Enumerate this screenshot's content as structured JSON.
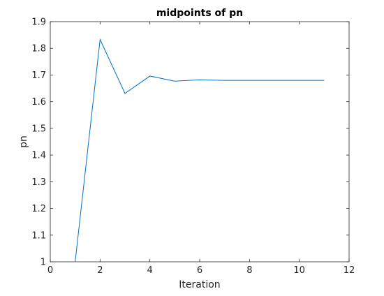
{
  "colors": {
    "series": "#0072bd",
    "axis": "#262626",
    "background": "#ffffff"
  },
  "chart_data": {
    "type": "line",
    "title": "midpoints of pn",
    "xlabel": "Iteration",
    "ylabel": "pn",
    "xlim": [
      0,
      12
    ],
    "ylim": [
      1,
      1.9
    ],
    "xticks": [
      0,
      2,
      4,
      6,
      8,
      10,
      12
    ],
    "yticks": [
      1,
      1.1,
      1.2,
      1.3,
      1.4,
      1.5,
      1.6,
      1.7,
      1.8,
      1.9
    ],
    "grid": false,
    "box": true,
    "series": [
      {
        "x": [
          1,
          2,
          3,
          4,
          5,
          6,
          7,
          8,
          9,
          10,
          11
        ],
        "y": [
          1.0,
          1.833,
          1.631,
          1.696,
          1.677,
          1.682,
          1.68,
          1.68,
          1.68,
          1.68,
          1.68
        ]
      }
    ]
  }
}
